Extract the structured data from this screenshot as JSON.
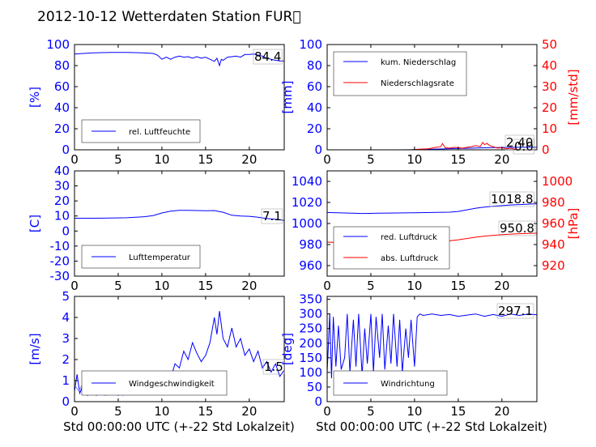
{
  "title": "2012-10-12 Wetterdaten Station FUR\u0000",
  "xlabel": "Std 00:00:00 UTC (+-22 Std Lokalzeit)",
  "colors": {
    "blue": "#0000ff",
    "red": "#ff0000",
    "lightblue": "#8080ff"
  },
  "chart_data": [
    {
      "type": "line",
      "ylabel": "[%]",
      "xlim": [
        0,
        24
      ],
      "ylim": [
        0,
        100
      ],
      "xticks": [
        0,
        5,
        10,
        15,
        20
      ],
      "yticks": [
        0,
        20,
        40,
        60,
        80,
        100
      ],
      "legend": "bottom-left",
      "series": [
        {
          "name": "rel. Luftfeuchte",
          "color": "#0000ff",
          "x": [
            0,
            1,
            2,
            3,
            4,
            5,
            6,
            7,
            8,
            9,
            9.5,
            10,
            10.5,
            11,
            11.5,
            12,
            12.5,
            13,
            13.5,
            14,
            14.5,
            15,
            15.5,
            16,
            16.3,
            16.6,
            16.8,
            17,
            17.5,
            18,
            18.5,
            19,
            19.5,
            20,
            20.5,
            21,
            21.5,
            22,
            22.5,
            23,
            23.5,
            24
          ],
          "y": [
            91,
            91.5,
            92,
            92.3,
            92.5,
            92.5,
            92.5,
            92.3,
            92,
            91.5,
            90,
            86,
            88,
            86,
            88,
            89,
            88,
            88.5,
            87,
            88.5,
            87,
            88,
            86,
            84,
            87,
            80,
            86,
            85,
            88,
            88.5,
            89,
            88,
            90.5,
            90.5,
            91,
            90,
            89,
            87,
            86,
            85,
            84.5,
            84.4
          ]
        }
      ],
      "annotations": [
        {
          "text": "84.4"
        }
      ]
    },
    {
      "type": "line",
      "ylabel": "[mm]",
      "ylabel_right": "[mm/std]",
      "xlim": [
        0,
        24
      ],
      "ylim": [
        0,
        100
      ],
      "ylim_right": [
        0,
        50
      ],
      "xticks": [
        0,
        5,
        10,
        15,
        20
      ],
      "yticks": [
        0,
        20,
        40,
        60,
        80,
        100
      ],
      "yticks_right": [
        0,
        10,
        20,
        30,
        40,
        50
      ],
      "legend": "top-left",
      "series": [
        {
          "name": "kum. Niederschlag",
          "color": "#0000ff",
          "axis": "left",
          "x": [
            0,
            8,
            10,
            11,
            12,
            13,
            14,
            15,
            16,
            17,
            18,
            19,
            20,
            21,
            22,
            23,
            24
          ],
          "y": [
            0,
            0,
            0.1,
            0.3,
            0.5,
            0.8,
            1.1,
            1.3,
            1.5,
            1.7,
            1.9,
            2.1,
            2.2,
            2.3,
            2.4,
            2.4,
            2.4
          ]
        },
        {
          "name": "Niederschlagsrate",
          "color": "#ff0000",
          "axis": "right",
          "x": [
            0,
            9.5,
            10.5,
            11.5,
            12,
            12.5,
            13,
            13.2,
            13.5,
            14,
            14.5,
            15,
            15.5,
            16,
            16.5,
            17,
            17.5,
            17.8,
            18,
            18.3,
            18.6,
            19,
            19.5,
            20,
            20.5,
            21,
            21.5,
            22,
            24
          ],
          "y": [
            0,
            0,
            0.3,
            0.5,
            0.8,
            1.2,
            1.5,
            3.0,
            1.0,
            0.8,
            1.2,
            1.0,
            0.8,
            1.2,
            1.5,
            2.0,
            1.5,
            3.5,
            2.5,
            3.0,
            2.0,
            1.5,
            0.8,
            1.0,
            0.5,
            0.8,
            0.3,
            0,
            0
          ]
        }
      ],
      "annotations": [
        {
          "text": "2.40"
        },
        {
          "text": "0.0"
        }
      ]
    },
    {
      "type": "line",
      "ylabel": "[C]",
      "xlim": [
        0,
        24
      ],
      "ylim": [
        -30,
        40
      ],
      "xticks": [
        0,
        5,
        10,
        15,
        20
      ],
      "yticks": [
        -30,
        -20,
        -10,
        0,
        10,
        20,
        30,
        40
      ],
      "legend": "bottom-left",
      "series": [
        {
          "name": "Lufttemperatur",
          "color": "#0000ff",
          "x": [
            0,
            2,
            4,
            6,
            8,
            9,
            10,
            11,
            12,
            13,
            14,
            15,
            16,
            16.5,
            17,
            18,
            19,
            20,
            21,
            22,
            23,
            24
          ],
          "y": [
            8.5,
            8.5,
            8.6,
            8.8,
            9.5,
            10.3,
            12,
            13.2,
            13.8,
            13.7,
            13.6,
            13.5,
            13.6,
            13.0,
            12.5,
            10.5,
            10.0,
            9.8,
            9.2,
            8.3,
            7.8,
            7.1
          ]
        }
      ],
      "annotations": [
        {
          "text": "7.1"
        }
      ]
    },
    {
      "type": "line",
      "ylabel_right": "[hPa]",
      "xlim": [
        0,
        24
      ],
      "ylim": [
        950,
        1050
      ],
      "ylim_right": [
        910,
        1010
      ],
      "xticks": [
        0,
        5,
        10,
        15,
        20
      ],
      "yticks": [
        960,
        980,
        1000,
        1020,
        1040
      ],
      "yticks_right": [
        920,
        940,
        960,
        980,
        1000
      ],
      "legend": "bottom-left",
      "series": [
        {
          "name": "red. Luftdruck",
          "color": "#0000ff",
          "axis": "left",
          "x": [
            0,
            2,
            4,
            6,
            8,
            10,
            12,
            14,
            15,
            16,
            17,
            18,
            19,
            20,
            21,
            22,
            23,
            24
          ],
          "y": [
            1010.5,
            1010,
            1009.5,
            1009.8,
            1010,
            1010.2,
            1010.5,
            1010.8,
            1011.5,
            1013,
            1014.5,
            1015.5,
            1016.3,
            1017,
            1017.6,
            1018,
            1018.4,
            1018.8
          ]
        },
        {
          "name": "abs. Luftdruck",
          "color": "#ff0000",
          "axis": "right",
          "x": [
            0,
            2,
            4,
            6,
            8,
            10,
            12,
            14,
            15,
            16,
            17,
            18,
            19,
            20,
            21,
            22,
            23,
            24
          ],
          "y": [
            942.3,
            941.8,
            941.5,
            941.8,
            942,
            942.3,
            942.8,
            943.5,
            944.5,
            945.8,
            947,
            948,
            948.8,
            949.4,
            949.9,
            950.3,
            950.6,
            950.8
          ]
        }
      ],
      "annotations": [
        {
          "text": "1018.8"
        },
        {
          "text": "950.8"
        }
      ]
    },
    {
      "type": "line",
      "ylabel": "[m/s]",
      "xlim": [
        0,
        24
      ],
      "ylim": [
        0,
        5
      ],
      "xticks": [
        0,
        5,
        10,
        15,
        20
      ],
      "yticks": [
        0,
        1,
        2,
        3,
        4,
        5
      ],
      "legend": "bottom-left",
      "series": [
        {
          "name": "Windgeschwindigkeit",
          "color": "#0000ff",
          "x": [
            0,
            0.3,
            0.6,
            1,
            1.5,
            2,
            2.5,
            3,
            3.5,
            4,
            4.5,
            5,
            5.5,
            6,
            6.5,
            7,
            7.5,
            8,
            8.5,
            9,
            9.5,
            10,
            10.5,
            11,
            11.5,
            12,
            12.5,
            13,
            13.5,
            14,
            14.5,
            15,
            15.5,
            16,
            16.3,
            16.6,
            17,
            17.5,
            18,
            18.5,
            19,
            19.5,
            20,
            20.5,
            21,
            21.5,
            22,
            22.5,
            23,
            23.5,
            24
          ],
          "y": [
            0.5,
            1.3,
            0.4,
            0.8,
            0.3,
            0.6,
            0.3,
            0.5,
            0.3,
            0.6,
            0.4,
            0.3,
            0.5,
            0.4,
            0.7,
            0.5,
            0.9,
            0.6,
            0.9,
            0.7,
            1.0,
            0.5,
            0.8,
            1.1,
            1.8,
            1.6,
            2.4,
            2.0,
            2.8,
            2.3,
            1.9,
            2.2,
            2.8,
            4.0,
            3.2,
            4.3,
            3.0,
            2.6,
            3.5,
            2.6,
            3.0,
            2.2,
            2.5,
            1.9,
            2.4,
            1.6,
            1.9,
            1.4,
            1.8,
            1.2,
            1.5
          ]
        },
        {
          "name": "",
          "color": "#8080ff",
          "x": [
            0,
            0.5,
            1,
            1.5,
            2,
            2.5,
            3,
            3.5,
            4,
            4.5,
            5,
            5.5,
            6,
            6.5,
            7,
            7.5,
            8,
            8.5,
            9,
            9.5,
            10,
            10.5,
            11
          ],
          "y": [
            0.8,
            0.5,
            0.9,
            0.6,
            0.4,
            0.7,
            0.5,
            0.3,
            0.6,
            0.4,
            0.5,
            0.3,
            0.6,
            0.8,
            0.5,
            0.7,
            0.9,
            0.6,
            0.8,
            1.0,
            0.7,
            0.9,
            0.6
          ]
        }
      ],
      "annotations": [
        {
          "text": "1.5"
        }
      ]
    },
    {
      "type": "line",
      "ylabel": "[deg]",
      "xlim": [
        0,
        24
      ],
      "ylim": [
        0,
        360
      ],
      "xticks": [
        0,
        5,
        10,
        15,
        20
      ],
      "yticks": [
        0,
        50,
        100,
        150,
        200,
        250,
        300,
        350
      ],
      "legend": "bottom-left",
      "series": [
        {
          "name": "Windrichtung",
          "color": "#0000ff",
          "x": [
            0,
            0.3,
            0.5,
            0.7,
            1,
            1.3,
            1.6,
            2,
            2.3,
            2.6,
            3,
            3.3,
            3.6,
            4,
            4.3,
            4.6,
            5,
            5.3,
            5.6,
            6,
            6.3,
            6.6,
            7,
            7.3,
            7.6,
            8,
            8.3,
            8.6,
            9,
            9.3,
            9.6,
            10,
            10.3,
            10.6,
            11,
            12,
            13,
            14,
            15,
            16,
            17,
            18,
            19,
            20,
            21,
            22,
            23,
            24
          ],
          "y": [
            100,
            300,
            80,
            290,
            120,
            260,
            110,
            150,
            300,
            100,
            280,
            120,
            300,
            90,
            250,
            130,
            300,
            100,
            290,
            150,
            300,
            110,
            260,
            130,
            300,
            120,
            280,
            100,
            250,
            150,
            280,
            120,
            290,
            300,
            295,
            300,
            295,
            298,
            292,
            296,
            300,
            292,
            298,
            292,
            300,
            295,
            300,
            297
          ]
        }
      ],
      "annotations": [
        {
          "text": "297.1"
        }
      ]
    }
  ]
}
